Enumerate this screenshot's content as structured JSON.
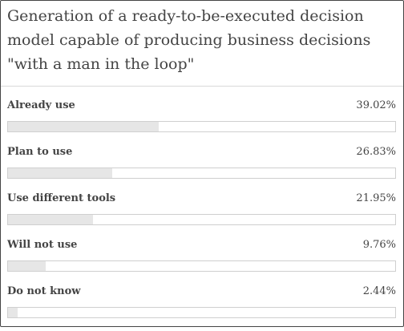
{
  "colors": {
    "fill": "#e6e6e6",
    "track_border": "#cfcfcf",
    "text": "#444444"
  },
  "chart_data": {
    "type": "bar",
    "title": "Generation of a ready-to-be-executed decision model capable of producing business decisions \"with a man in the loop\"",
    "categories": [
      "Already use",
      "Plan to use",
      "Use different tools",
      "Will not use",
      "Do not know"
    ],
    "values": [
      39.02,
      26.83,
      21.95,
      9.76,
      2.44
    ],
    "value_labels": [
      "39.02%",
      "26.83%",
      "21.95%",
      "9.76%",
      "2.44%"
    ],
    "xlim": [
      0,
      100
    ],
    "orientation": "horizontal",
    "grid": false
  }
}
